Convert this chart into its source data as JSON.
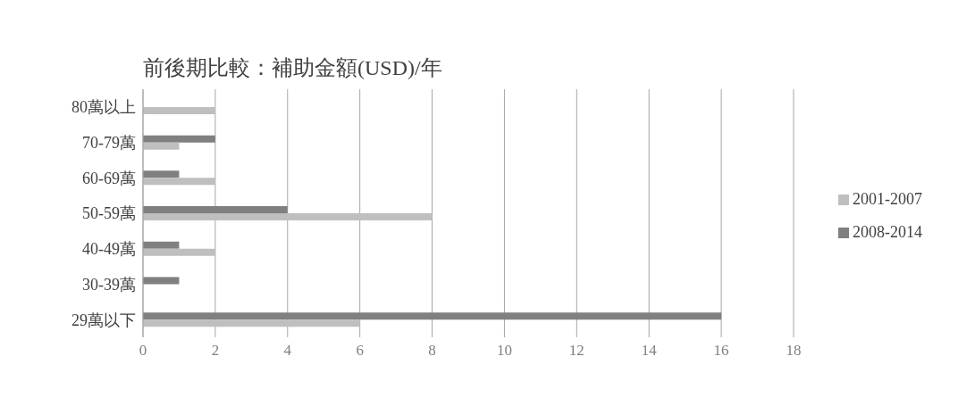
{
  "chart_data": {
    "type": "bar",
    "orientation": "horizontal",
    "title": "前後期比較：補助金額(USD)/年",
    "categories": [
      "80萬以上",
      "70-79萬",
      "60-69萬",
      "50-59萬",
      "40-49萬",
      "30-39萬",
      "29萬以下"
    ],
    "series": [
      {
        "name": "2001-2007",
        "color": "#bfbfbf",
        "values": [
          2,
          1,
          2,
          8,
          2,
          0,
          6
        ]
      },
      {
        "name": "2008-2014",
        "color": "#808080",
        "values": [
          0,
          2,
          1,
          4,
          1,
          1,
          16
        ]
      }
    ],
    "xlim": [
      0,
      18
    ],
    "xticks": [
      0,
      2,
      4,
      6,
      8,
      10,
      12,
      14,
      16,
      18
    ],
    "grid": "x",
    "legend": "right"
  }
}
